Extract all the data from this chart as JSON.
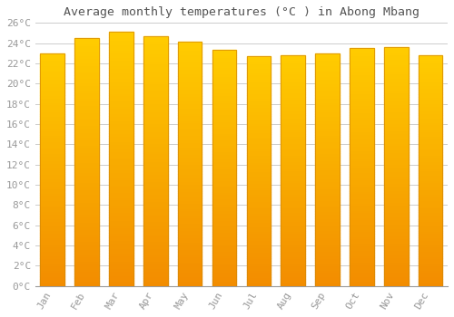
{
  "title": "Average monthly temperatures (°C ) in Abong Mbang",
  "months": [
    "Jan",
    "Feb",
    "Mar",
    "Apr",
    "May",
    "Jun",
    "Jul",
    "Aug",
    "Sep",
    "Oct",
    "Nov",
    "Dec"
  ],
  "values": [
    23.0,
    24.5,
    25.1,
    24.7,
    24.1,
    23.3,
    22.7,
    22.8,
    23.0,
    23.5,
    23.6,
    22.8
  ],
  "bar_color": "#FFA500",
  "bar_color_edge": "#E8930A",
  "background_color": "#FFFFFF",
  "plot_bg_color": "#FFFFFF",
  "grid_color": "#CCCCCC",
  "ylim": [
    0,
    26
  ],
  "yticks": [
    0,
    2,
    4,
    6,
    8,
    10,
    12,
    14,
    16,
    18,
    20,
    22,
    24,
    26
  ],
  "title_fontsize": 9.5,
  "tick_fontsize": 8,
  "tick_color": "#999999",
  "title_color": "#555555",
  "font_family": "monospace",
  "bar_width": 0.7
}
